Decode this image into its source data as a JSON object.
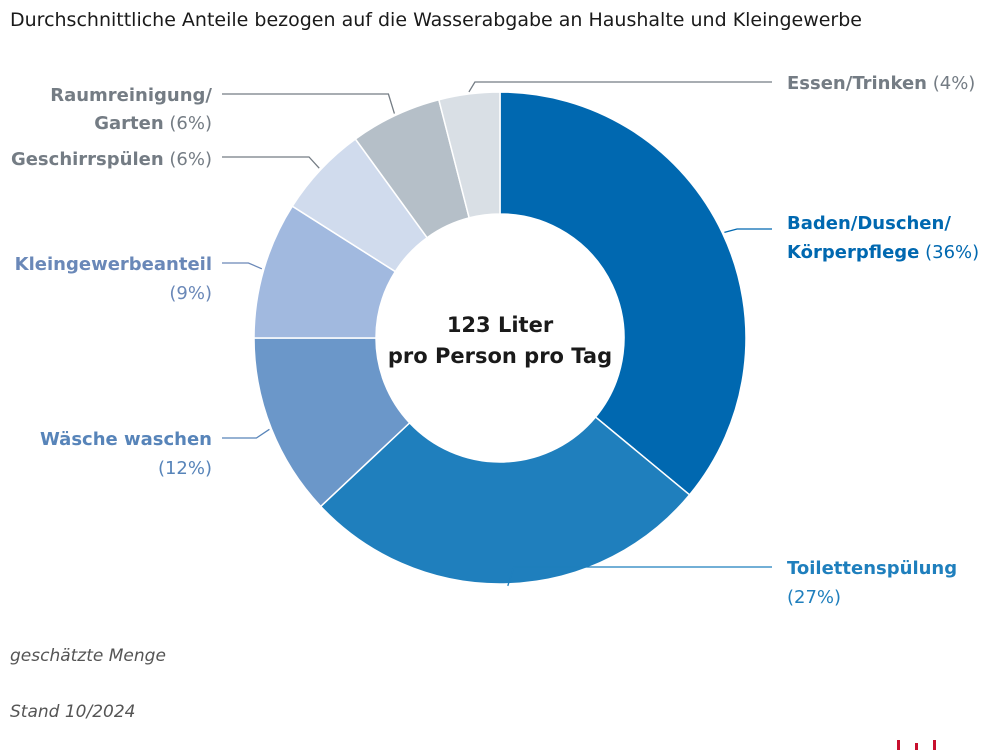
{
  "title": "Durchschnittliche Anteile bezogen auf die Wasserabgabe an Haushalte und Kleingewerbe",
  "center": {
    "line1": "123 Liter",
    "line2": "pro Person pro Tag"
  },
  "notes": {
    "estimate": "geschätzte Menge",
    "date": "Stand 10/2024"
  },
  "colors": {
    "label_gray": "#7d848b",
    "logo": "#c8102e"
  },
  "chart_data": {
    "type": "pie",
    "variant": "donut",
    "title": "Durchschnittliche Anteile bezogen auf die Wasserabgabe an Haushalte und Kleingewerbe",
    "unit": "%",
    "start": "12 o'clock, clockwise",
    "slices": [
      {
        "label": "Baden/Duschen/ Körperpflege",
        "lines": [
          "Baden/Duschen/",
          "Körperpflege"
        ],
        "pct": "(36%)",
        "value": 36,
        "color": "#0068b0",
        "textColor": "#0068b0"
      },
      {
        "label": "Toilettenspülung",
        "lines": [
          "Toilettenspülung"
        ],
        "pct": "(27%)",
        "value": 27,
        "color": "#1f7fbd",
        "textColor": "#1f7fbd"
      },
      {
        "label": "Wäsche waschen",
        "lines": [
          "Wäsche waschen"
        ],
        "pct": "(12%)",
        "value": 12,
        "color": "#6b97c9",
        "textColor": "#5784b9"
      },
      {
        "label": "Kleingewerbeanteil",
        "lines": [
          "Kleingewerbeanteil"
        ],
        "pct": "(9%)",
        "value": 9,
        "color": "#a1b9df",
        "textColor": "#6a88b8"
      },
      {
        "label": "Geschirrspülen",
        "lines": [
          "Geschirrspülen"
        ],
        "pct": "(6%)",
        "value": 6,
        "color": "#d0dbed",
        "textColor": "#747c84"
      },
      {
        "label": "Raumreinigung/ Garten",
        "lines": [
          "Raumreinigung/",
          "Garten"
        ],
        "pct": "(6%)",
        "value": 6,
        "color": "#b5bfc8",
        "textColor": "#747c84"
      },
      {
        "label": "Essen/Trinken",
        "lines": [
          "Essen/Trinken"
        ],
        "pct": "(4%)",
        "value": 4,
        "color": "#d9dfe5",
        "textColor": "#747c84"
      }
    ]
  }
}
